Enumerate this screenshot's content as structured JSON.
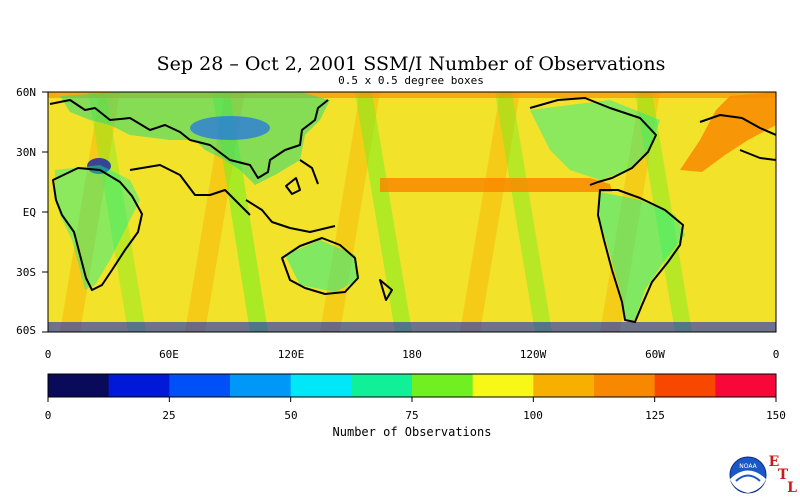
{
  "title": "Sep 28 – Oct 2, 2001 SSM/I Number of Observations",
  "subtitle": "0.5 x 0.5 degree boxes",
  "map": {
    "projection": "equirectangular",
    "lon_range": [
      0,
      360
    ],
    "lat_range": [
      -60,
      60
    ],
    "lat_labels": [
      "60N",
      "30N",
      "EQ",
      "30S",
      "60S"
    ],
    "lon_labels": [
      "0",
      "60E",
      "120E",
      "180",
      "120W",
      "60W",
      "0"
    ],
    "background_color": "#f2e22a",
    "coastline_color": "#000000"
  },
  "colorbar": {
    "title": "Number of Observations",
    "range": [
      0,
      150
    ],
    "tick_labels": [
      "0",
      "25",
      "50",
      "75",
      "100",
      "125",
      "150"
    ],
    "colors": [
      "#0a0a5a",
      "#0018d8",
      "#0050f8",
      "#0098f8",
      "#00e8f8",
      "#10f098",
      "#70f020",
      "#f8f818",
      "#f8b000",
      "#f88800",
      "#f84800",
      "#f80838"
    ]
  },
  "logos": {
    "agency": "NOAA",
    "lab": "ETL",
    "lab_letters": [
      "E",
      "T",
      "L"
    ]
  }
}
